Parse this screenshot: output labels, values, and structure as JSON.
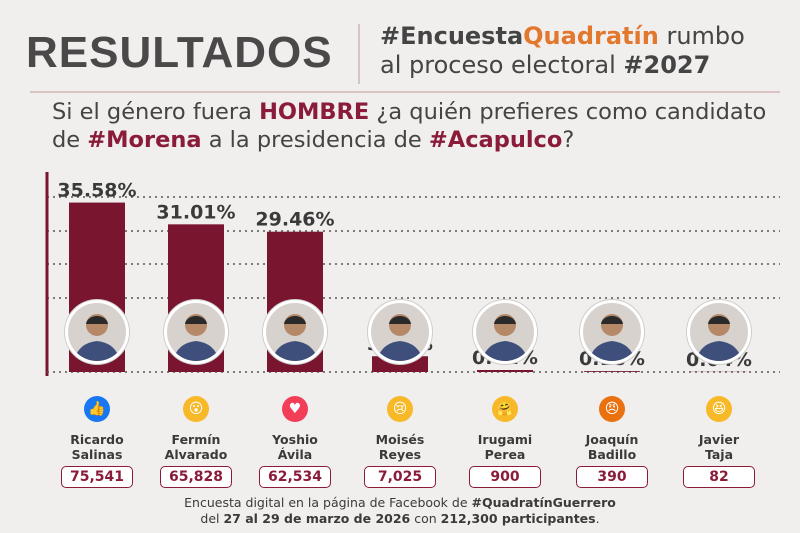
{
  "header": {
    "title": "RESULTADOS",
    "hashtag_prefix": "#Encuesta",
    "hashtag_brand": "Quadratín",
    "rumbo": " rumbo",
    "line2": "al proceso electoral ",
    "year_tag": "#2027"
  },
  "question": {
    "p1": "Si el género fuera ",
    "gender": "HOMBRE",
    "p2": " ¿a quién prefieres como candidato de ",
    "party": "#Morena",
    "p3": " a la presidencia de ",
    "city": "#Acapulco",
    "p4": "?"
  },
  "colors": {
    "bar": "#7a1530",
    "accent": "#8a1c3a",
    "orange": "#e2782e"
  },
  "chart_data": {
    "type": "bar",
    "categories": [
      "Ricardo Salinas",
      "Fermín Alvarado",
      "Yoshio Ávila",
      "Moisés Reyes",
      "Irugami Perea",
      "Joaquín Badillo",
      "Javier Taja"
    ],
    "values": [
      35.58,
      31.01,
      29.46,
      3.31,
      0.42,
      0.18,
      0.04
    ],
    "value_labels": [
      "35.58%",
      "31.01%",
      "29.46%",
      "3.31%",
      "0.42%",
      "0.18%",
      "0.04%"
    ],
    "ylim": [
      0,
      42
    ],
    "grid": true
  },
  "candidates": [
    {
      "first": "Ricardo",
      "last": "Salinas",
      "votes": "75,541",
      "reaction": "like-icon",
      "reaction_color": "#1877f2",
      "glyph": "👍"
    },
    {
      "first": "Fermín",
      "last": "Alvarado",
      "votes": "65,828",
      "reaction": "wow-icon",
      "reaction_color": "#f7b928",
      "glyph": "😮"
    },
    {
      "first": "Yoshio",
      "last": "Ávila",
      "votes": "62,534",
      "reaction": "love-icon",
      "reaction_color": "#f33e58",
      "glyph": "♥"
    },
    {
      "first": "Moisés",
      "last": "Reyes",
      "votes": "7,025",
      "reaction": "sad-icon",
      "reaction_color": "#f7b928",
      "glyph": "😢"
    },
    {
      "first": "Irugami",
      "last": "Perea",
      "votes": "900",
      "reaction": "care-icon",
      "reaction_color": "#f7b928",
      "glyph": "🤗"
    },
    {
      "first": "Joaquín",
      "last": "Badillo",
      "votes": "390",
      "reaction": "angry-icon",
      "reaction_color": "#e9710f",
      "glyph": "😠"
    },
    {
      "first": "Javier",
      "last": "Taja",
      "votes": "82",
      "reaction": "haha-icon",
      "reaction_color": "#f7b928",
      "glyph": "😆"
    }
  ],
  "footer": {
    "l1": "Encuesta digital en la página de Facebook de ",
    "l1b": "#QuadratínGuerrero",
    "l2a": "del ",
    "l2b": "27 al 29 de marzo de 2026",
    "l2c": " con ",
    "l2d": "212,300 participantes",
    "l2e": "."
  }
}
